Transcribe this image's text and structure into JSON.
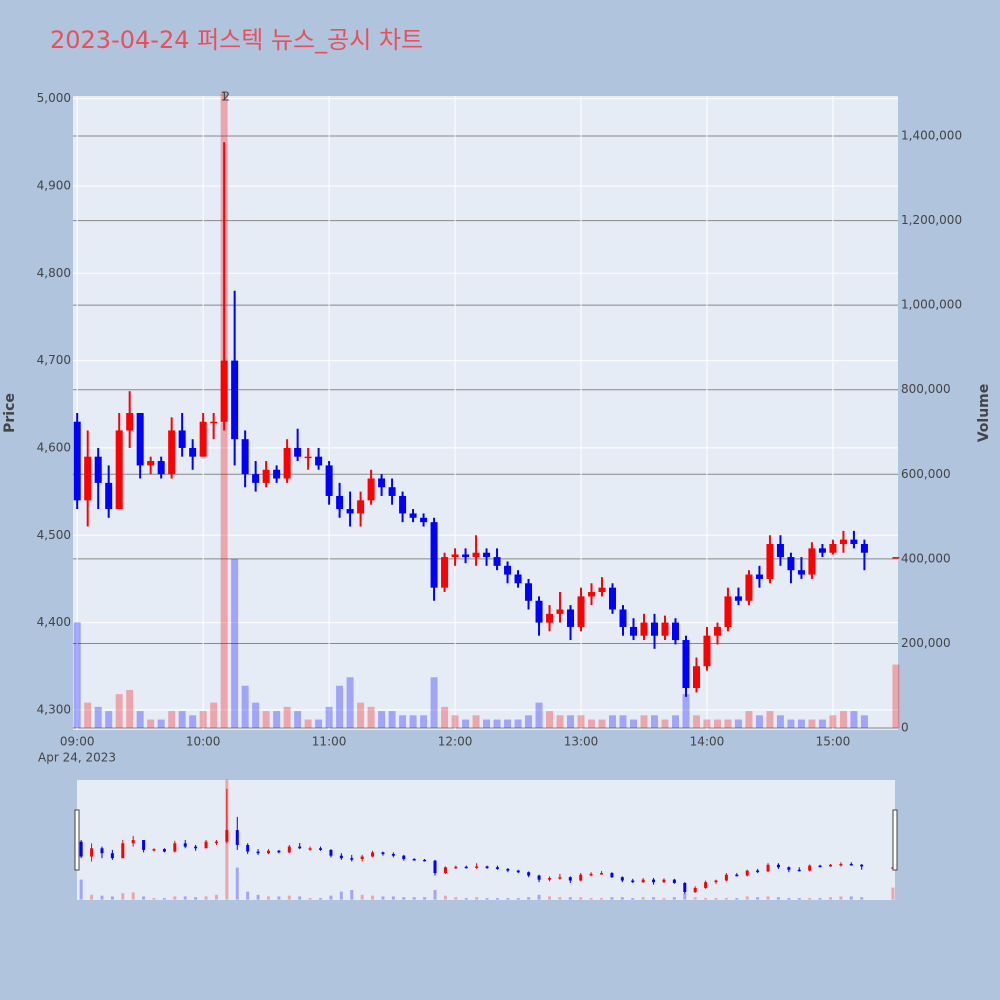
{
  "chart_data": {
    "type": "candlestick",
    "title": "2023-04-24 퍼스텍 뉴스_공시 차트",
    "x_date_label": "Apr 24, 2023",
    "ylabel": "Price",
    "y2label": "Volume",
    "increasing_color": "#ff0000",
    "decreasing_color": "#0000ff",
    "grid": true,
    "rangeslider": true,
    "x": [
      "09:00",
      "09:05",
      "09:10",
      "09:15",
      "09:20",
      "09:25",
      "09:30",
      "09:35",
      "09:40",
      "09:45",
      "09:50",
      "09:55",
      "10:00",
      "10:05",
      "10:10",
      "10:15",
      "10:20",
      "10:25",
      "10:30",
      "10:35",
      "10:40",
      "10:45",
      "10:50",
      "10:55",
      "11:00",
      "11:05",
      "11:10",
      "11:15",
      "11:20",
      "11:25",
      "11:30",
      "11:35",
      "11:40",
      "11:45",
      "11:50",
      "11:55",
      "12:00",
      "12:05",
      "12:10",
      "12:15",
      "12:20",
      "12:25",
      "12:30",
      "12:35",
      "12:40",
      "12:45",
      "12:50",
      "12:55",
      "13:00",
      "13:05",
      "13:10",
      "13:15",
      "13:20",
      "13:25",
      "13:30",
      "13:35",
      "13:40",
      "13:45",
      "13:50",
      "13:55",
      "14:00",
      "14:05",
      "14:10",
      "14:15",
      "14:20",
      "14:25",
      "14:30",
      "14:35",
      "14:40",
      "14:45",
      "14:50",
      "14:55",
      "15:00",
      "15:05",
      "15:10",
      "15:15",
      "15:30"
    ],
    "open": [
      4630,
      4540,
      4590,
      4560,
      4530,
      4620,
      4640,
      4580,
      4585,
      4570,
      4620,
      4600,
      4590,
      4630,
      4630,
      4700,
      4610,
      4570,
      4560,
      4575,
      4565,
      4600,
      4590,
      4590,
      4580,
      4545,
      4530,
      4525,
      4540,
      4565,
      4555,
      4545,
      4525,
      4520,
      4515,
      4440,
      4475,
      4478,
      4475,
      4480,
      4475,
      4465,
      4455,
      4445,
      4425,
      4400,
      4410,
      4415,
      4395,
      4430,
      4435,
      4440,
      4415,
      4395,
      4385,
      4400,
      4385,
      4400,
      4380,
      4325,
      4350,
      4385,
      4395,
      4430,
      4425,
      4455,
      4450,
      4490,
      4475,
      4460,
      4455,
      4485,
      4480,
      4490,
      4495,
      4490,
      4475
    ],
    "high": [
      4640,
      4620,
      4600,
      4580,
      4640,
      4665,
      4640,
      4590,
      4590,
      4635,
      4640,
      4610,
      4640,
      4640,
      4950,
      4780,
      4620,
      4585,
      4585,
      4580,
      4610,
      4622,
      4600,
      4600,
      4585,
      4560,
      4550,
      4550,
      4575,
      4570,
      4565,
      4550,
      4530,
      4525,
      4520,
      4480,
      4485,
      4485,
      4500,
      4485,
      4485,
      4470,
      4460,
      4450,
      4430,
      4420,
      4435,
      4420,
      4440,
      4445,
      4452,
      4445,
      4420,
      4405,
      4410,
      4410,
      4408,
      4405,
      4385,
      4360,
      4395,
      4400,
      4440,
      4440,
      4460,
      4465,
      4500,
      4500,
      4480,
      4475,
      4492,
      4490,
      4495,
      4505,
      4505,
      4495,
      4475
    ],
    "low": [
      4530,
      4510,
      4530,
      4520,
      4530,
      4600,
      4565,
      4570,
      4565,
      4565,
      4590,
      4575,
      4590,
      4610,
      4620,
      4580,
      4555,
      4550,
      4555,
      4560,
      4560,
      4585,
      4575,
      4575,
      4535,
      4520,
      4510,
      4510,
      4535,
      4545,
      4535,
      4515,
      4515,
      4510,
      4425,
      4435,
      4465,
      4468,
      4465,
      4465,
      4460,
      4445,
      4440,
      4415,
      4385,
      4390,
      4400,
      4380,
      4390,
      4420,
      4430,
      4410,
      4385,
      4380,
      4380,
      4370,
      4380,
      4375,
      4315,
      4320,
      4345,
      4375,
      4390,
      4420,
      4420,
      4440,
      4445,
      4465,
      4445,
      4450,
      4450,
      4475,
      4478,
      4480,
      4485,
      4460,
      4475
    ],
    "close": [
      4540,
      4590,
      4560,
      4530,
      4620,
      4640,
      4580,
      4585,
      4570,
      4620,
      4600,
      4590,
      4630,
      4630,
      4700,
      4610,
      4570,
      4560,
      4575,
      4565,
      4600,
      4590,
      4590,
      4580,
      4545,
      4530,
      4525,
      4540,
      4565,
      4555,
      4545,
      4525,
      4520,
      4515,
      4440,
      4475,
      4478,
      4475,
      4480,
      4475,
      4465,
      4455,
      4445,
      4425,
      4400,
      4410,
      4415,
      4395,
      4430,
      4435,
      4440,
      4415,
      4395,
      4385,
      4400,
      4385,
      4400,
      4380,
      4325,
      4350,
      4385,
      4395,
      4430,
      4425,
      4455,
      4450,
      4490,
      4475,
      4460,
      4455,
      4485,
      4480,
      4490,
      4495,
      4490,
      4480,
      4475
    ],
    "volume": [
      250000,
      60000,
      50000,
      40000,
      80000,
      90000,
      40000,
      20000,
      20000,
      40000,
      40000,
      30000,
      40000,
      60000,
      1500000,
      400000,
      100000,
      60000,
      40000,
      40000,
      50000,
      40000,
      20000,
      20000,
      50000,
      100000,
      120000,
      60000,
      50000,
      40000,
      40000,
      30000,
      30000,
      30000,
      120000,
      50000,
      30000,
      20000,
      30000,
      20000,
      20000,
      20000,
      20000,
      30000,
      60000,
      40000,
      30000,
      30000,
      30000,
      20000,
      20000,
      30000,
      30000,
      20000,
      30000,
      30000,
      20000,
      30000,
      80000,
      30000,
      20000,
      20000,
      20000,
      20000,
      40000,
      30000,
      40000,
      30000,
      20000,
      20000,
      20000,
      20000,
      30000,
      40000,
      40000,
      30000,
      150000
    ],
    "annotations": [
      {
        "x": "10:10",
        "text": "1"
      },
      {
        "x": "10:11",
        "text": "2"
      }
    ],
    "xlim": [
      "08:58",
      "15:31"
    ],
    "xticks": [
      "09:00",
      "10:00",
      "11:00",
      "12:00",
      "13:00",
      "14:00",
      "15:00"
    ],
    "ylim": [
      4277,
      5003
    ],
    "yticks": [
      {
        "value": 4300,
        "label": "4,300"
      },
      {
        "value": 4400,
        "label": "4,400"
      },
      {
        "value": 4500,
        "label": "4,500"
      },
      {
        "value": 4600,
        "label": "4,600"
      },
      {
        "value": 4700,
        "label": "4,700"
      },
      {
        "value": 4800,
        "label": "4,800"
      },
      {
        "value": 4900,
        "label": "4,900"
      },
      {
        "value": 5000,
        "label": "5,000"
      }
    ],
    "y2lim": [
      -4700,
      1494600
    ],
    "y2ticks": [
      0,
      {
        "value": 200000,
        "label": "200,000"
      },
      {
        "value": 400000,
        "label": "400,000"
      },
      {
        "value": 600000,
        "label": "600,000"
      },
      {
        "value": 800000,
        "label": "800,000"
      },
      {
        "value": 1000000,
        "label": "1,000,000"
      },
      {
        "value": 1200000,
        "label": "1,200,000"
      },
      {
        "value": 1400000,
        "label": "1,400,000"
      }
    ]
  }
}
